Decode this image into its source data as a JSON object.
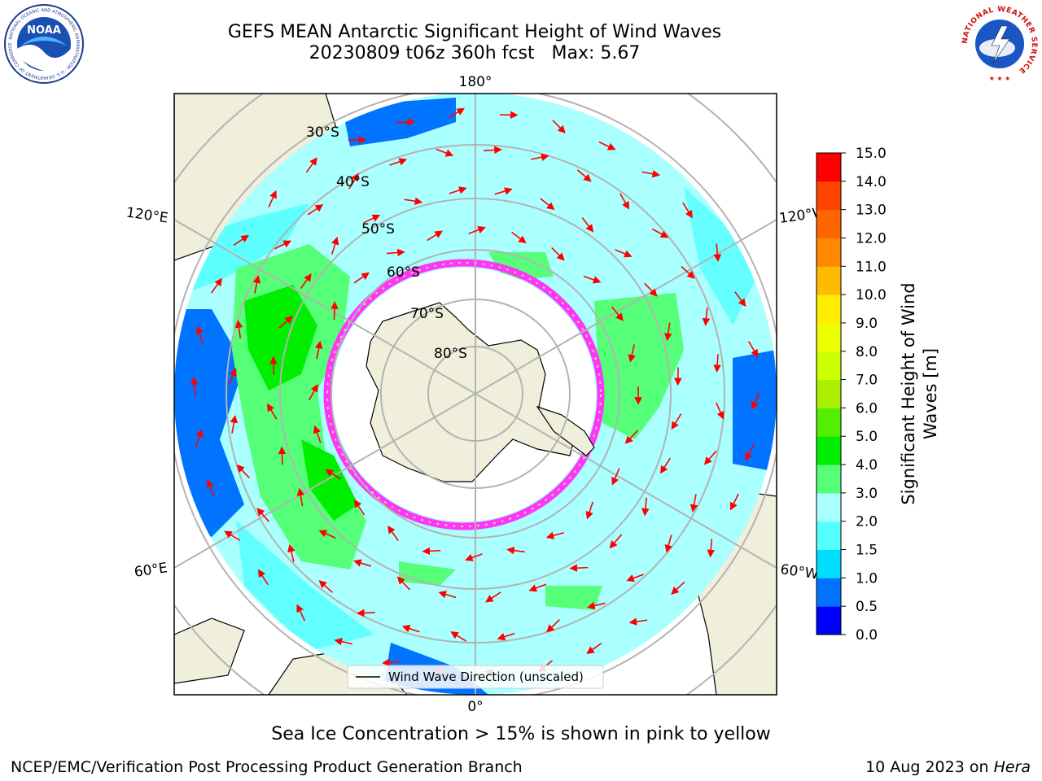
{
  "header": {
    "title_line1": "GEFS MEAN Antarctic Significant Height of Wind Waves",
    "title_line2": "20230809 t06z 360h fcst   Max: 5.67"
  },
  "map": {
    "projection": "south-polar-stereographic",
    "latitude_labels": [
      "30°S",
      "40°S",
      "50°S",
      "60°S",
      "70°S",
      "80°S"
    ],
    "longitude_labels": {
      "top": "180°",
      "bottom": "0°",
      "upper_left": "120°E",
      "lower_left": "60°E",
      "upper_right": "120°W",
      "lower_right": "60°W"
    },
    "legend_label": "Wind Wave Direction (unscaled)",
    "colors": {
      "ocean_fill": "#aaffff",
      "land": "#efefdb",
      "ice_edge": "#ff33ff",
      "arrow": "#ff0000",
      "gridline": "#b3b3b3"
    }
  },
  "colorbar": {
    "label_line1": "Significant Height of Wind",
    "label_line2": "Waves [m]",
    "ticks": [
      "0.0",
      "0.5",
      "1.0",
      "1.5",
      "2.0",
      "3.0",
      "4.0",
      "5.0",
      "6.0",
      "7.0",
      "8.0",
      "9.0",
      "10.0",
      "11.0",
      "12.0",
      "13.0",
      "14.0",
      "15.0"
    ],
    "colors": [
      "#0000ff",
      "#0074ff",
      "#00ddff",
      "#55ffff",
      "#aaffff",
      "#55ff77",
      "#00ee00",
      "#55ee00",
      "#aaee00",
      "#ccff00",
      "#eeff00",
      "#ffee00",
      "#ffbb00",
      "#ff8800",
      "#ff6600",
      "#ff4400",
      "#ff0000"
    ]
  },
  "footer": {
    "ice_note": "Sea Ice Concentration > 15% is shown in pink to yellow",
    "credit": "NCEP/EMC/Verification Post Processing Product Generation Branch",
    "date": "10 Aug 2023 on ",
    "system": "Hera"
  },
  "logos": {
    "noaa_text": "NOAA",
    "noaa_ring": "NATIONAL OCEANIC AND ATMOSPHERIC ADMINISTRATION · U.S. DEPARTMENT OF COMMERCE",
    "nws_ring": "NATIONAL WEATHER SERVICE"
  }
}
